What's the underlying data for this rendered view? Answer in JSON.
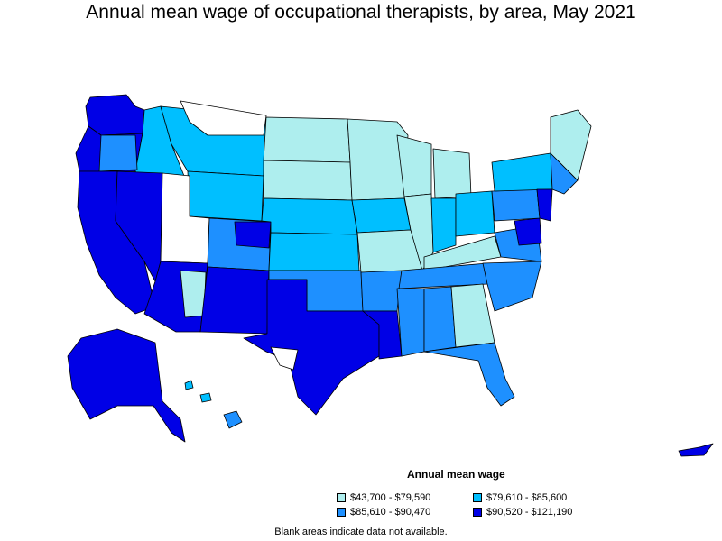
{
  "title": "Annual mean wage of occupational therapists, by area, May 2021",
  "legend": {
    "title": "Annual mean wage",
    "items": [
      {
        "label": "$43,700 - $79,590",
        "color": "#aeeeee"
      },
      {
        "label": "$79,610 - $85,600",
        "color": "#00bfff"
      },
      {
        "label": "$85,610 - $90,470",
        "color": "#1e90ff"
      },
      {
        "label": "$90,520 - $121,190",
        "color": "#0000e6"
      }
    ]
  },
  "footnote": "Blank areas indicate data not available."
}
